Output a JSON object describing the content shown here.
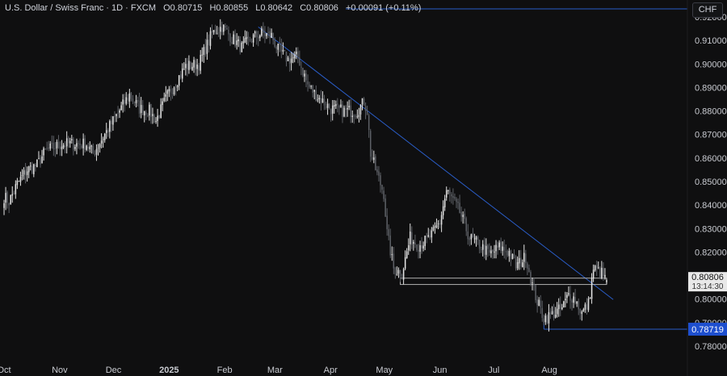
{
  "header": {
    "symbol_title": "U.S. Dollar / Swiss Franc · 1D · FXCM",
    "open": "O0.80715",
    "high": "H0.80855",
    "low": "L0.80642",
    "close": "C0.80806",
    "change": "+0.00091 (+0.11%)",
    "currency_button": "CHF"
  },
  "colors": {
    "background": "#0f0f10",
    "candle_up": "#e6e6e6",
    "candle_down": "#5d6066",
    "trendline": "#2a5dc8",
    "support_box": "#b0b0b0",
    "price_label_bg": "#e8e8e8",
    "low_label_bg": "#1e4fcf"
  },
  "price_labels": {
    "last_price": "0.80806",
    "countdown": "13:14:30",
    "low_level": "0.78719"
  },
  "chart_data": {
    "type": "candlestick",
    "title": "U.S. Dollar / Swiss Franc · 1D · FXCM",
    "y_ticks": [
      "0.92000",
      "0.91000",
      "0.90000",
      "0.89000",
      "0.88000",
      "0.87000",
      "0.86000",
      "0.85000",
      "0.84000",
      "0.83000",
      "0.82000",
      "0.81000",
      "0.80000",
      "0.79000",
      "0.78000"
    ],
    "x_ticks": [
      "Oct",
      "Nov",
      "Dec",
      "2025",
      "Feb",
      "Mar",
      "Apr",
      "May",
      "Jun",
      "Jul",
      "Aug"
    ],
    "ylim": [
      0.7755,
      0.9245
    ],
    "grid": false,
    "anchors": [
      [
        0,
        0.8435
      ],
      [
        3,
        0.8415
      ],
      [
        8,
        0.849
      ],
      [
        14,
        0.855
      ],
      [
        20,
        0.857
      ],
      [
        25,
        0.863
      ],
      [
        35,
        0.866
      ],
      [
        50,
        0.866
      ],
      [
        54,
        0.862
      ],
      [
        60,
        0.869
      ],
      [
        68,
        0.878
      ],
      [
        76,
        0.887
      ],
      [
        82,
        0.881
      ],
      [
        88,
        0.88
      ],
      [
        92,
        0.876
      ],
      [
        100,
        0.888
      ],
      [
        110,
        0.899
      ],
      [
        118,
        0.9
      ],
      [
        126,
        0.913
      ],
      [
        132,
        0.916
      ],
      [
        138,
        0.911
      ],
      [
        144,
        0.907
      ],
      [
        150,
        0.911
      ],
      [
        156,
        0.913
      ],
      [
        162,
        0.912
      ],
      [
        166,
        0.906
      ],
      [
        172,
        0.902
      ],
      [
        178,
        0.903
      ],
      [
        184,
        0.891
      ],
      [
        190,
        0.886
      ],
      [
        198,
        0.881
      ],
      [
        206,
        0.88
      ],
      [
        214,
        0.88
      ],
      [
        218,
        0.884
      ],
      [
        220,
        0.88
      ],
      [
        222,
        0.862
      ],
      [
        226,
        0.853
      ],
      [
        230,
        0.845
      ],
      [
        232,
        0.828
      ],
      [
        236,
        0.813
      ],
      [
        241,
        0.811
      ],
      [
        246,
        0.826
      ],
      [
        251,
        0.823
      ],
      [
        256,
        0.825
      ],
      [
        260,
        0.828
      ],
      [
        264,
        0.833
      ],
      [
        268,
        0.846
      ],
      [
        271,
        0.843
      ],
      [
        276,
        0.837
      ],
      [
        282,
        0.826
      ],
      [
        288,
        0.823
      ],
      [
        294,
        0.819
      ],
      [
        300,
        0.822
      ],
      [
        306,
        0.82
      ],
      [
        310,
        0.814
      ],
      [
        316,
        0.818
      ],
      [
        320,
        0.806
      ],
      [
        323,
        0.799
      ],
      [
        327,
        0.792
      ],
      [
        331,
        0.793
      ],
      [
        338,
        0.796
      ],
      [
        342,
        0.802
      ],
      [
        346,
        0.8
      ],
      [
        350,
        0.794
      ],
      [
        354,
        0.798
      ],
      [
        357,
        0.813
      ],
      [
        362,
        0.811
      ],
      [
        365,
        0.8072
      ]
    ],
    "last_candle": {
      "open": 0.80715,
      "high": 0.80855,
      "low": 0.80642,
      "close": 0.80806
    },
    "trendline": {
      "start_day": 154,
      "start_price": 0.9158,
      "end_day": 369,
      "end_price": 0.7998
    },
    "support_zone": {
      "start_day": 240,
      "end_day": 365,
      "top": 0.8089,
      "bottom": 0.8062
    },
    "low_line": {
      "start_day": 327,
      "end_day": 410,
      "price": 0.78719
    },
    "total_days": 412
  }
}
